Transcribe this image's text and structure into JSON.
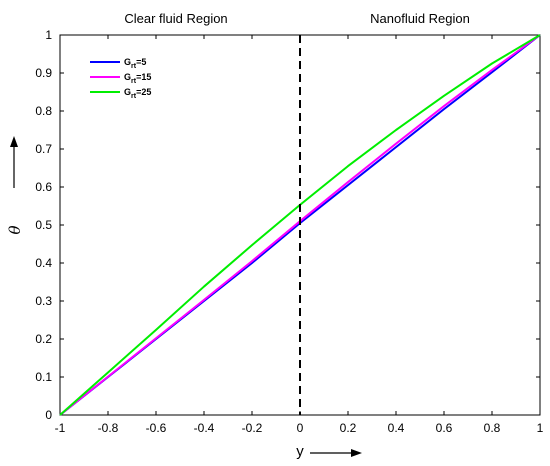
{
  "chart_data": {
    "type": "line",
    "xlabel": "y",
    "ylabel": "θ",
    "xlim": [
      -1,
      1
    ],
    "ylim": [
      0,
      1
    ],
    "xticks": [
      "-1",
      "-0.8",
      "-0.6",
      "-0.4",
      "-0.2",
      "0",
      "0.2",
      "0.4",
      "0.6",
      "0.8",
      "1"
    ],
    "yticks": [
      "0",
      "0.1",
      "0.2",
      "0.3",
      "0.4",
      "0.5",
      "0.6",
      "0.7",
      "0.8",
      "0.9",
      "1"
    ],
    "regions": {
      "left": "Clear fluid Region",
      "right": "Nanofluid Region",
      "interface_x": 0
    },
    "legend_position": "top-left",
    "series": [
      {
        "name": "G_rt=5",
        "label_main": "G",
        "label_sub": "rt",
        "label_tail": "=5",
        "color": "#0000ff",
        "x": [
          -1,
          -0.8,
          -0.6,
          -0.4,
          -0.2,
          0,
          0.2,
          0.4,
          0.6,
          0.8,
          1
        ],
        "y": [
          0,
          0.1,
          0.2,
          0.3,
          0.4,
          0.505,
          0.605,
          0.705,
          0.805,
          0.902,
          1
        ]
      },
      {
        "name": "G_rt=15",
        "label_main": "G",
        "label_sub": "rt",
        "label_tail": "=15",
        "color": "#ff00ff",
        "x": [
          -1,
          -0.8,
          -0.6,
          -0.4,
          -0.2,
          0,
          0.2,
          0.4,
          0.6,
          0.8,
          1
        ],
        "y": [
          0,
          0.101,
          0.202,
          0.303,
          0.405,
          0.51,
          0.613,
          0.714,
          0.813,
          0.908,
          1
        ]
      },
      {
        "name": "G_rt=25",
        "label_main": "G",
        "label_sub": "rt",
        "label_tail": "=25",
        "color": "#00ee00",
        "x": [
          -1,
          -0.8,
          -0.6,
          -0.4,
          -0.2,
          0,
          0.2,
          0.4,
          0.6,
          0.8,
          1
        ],
        "y": [
          0,
          0.112,
          0.224,
          0.338,
          0.447,
          0.553,
          0.655,
          0.75,
          0.84,
          0.925,
          1
        ]
      }
    ]
  }
}
